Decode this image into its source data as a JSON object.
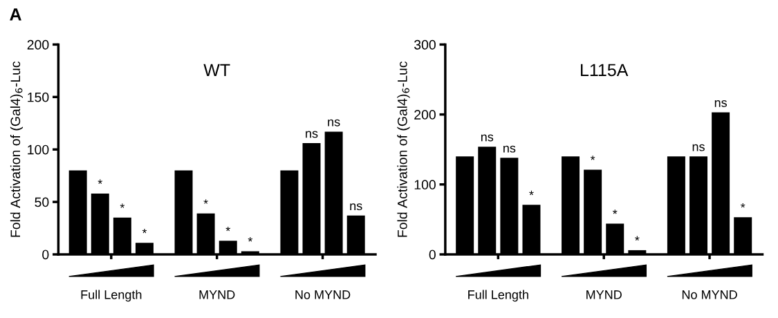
{
  "chart_data": [
    {
      "type": "bar",
      "title": "WT",
      "ylabel": "Fold Activation of (Gal4)$_{6}$-Luc",
      "annotations": [
        "A"
      ],
      "categories": [
        "Full Length",
        "MYND",
        "No MYND"
      ],
      "ylim": [
        0,
        200
      ],
      "yticks": [
        0,
        50,
        100,
        150,
        200
      ],
      "grid": false,
      "legend": false,
      "series": [
        {
          "color": "#000000",
          "values": [
            80,
            80,
            80
          ],
          "value_labels": [
            null,
            null,
            null
          ]
        },
        {
          "color": "#000000",
          "values": [
            58,
            39,
            106
          ],
          "value_labels": [
            "*",
            "*",
            "ns"
          ]
        },
        {
          "color": "#000000",
          "values": [
            35,
            13,
            117
          ],
          "value_labels": [
            "*",
            "*",
            "ns"
          ]
        },
        {
          "color": "#000000",
          "values": [
            11,
            3,
            37
          ],
          "value_labels": [
            "*",
            "*",
            "ns"
          ]
        }
      ]
    },
    {
      "type": "bar",
      "title": "L115A",
      "ylabel": "Fold Activation of (Gal4)$_{6}$-Luc",
      "categories": [
        "Full Length",
        "MYND",
        "No MYND"
      ],
      "ylim": [
        0,
        300
      ],
      "yticks": [
        0,
        100,
        200,
        300
      ],
      "grid": false,
      "legend": false,
      "series": [
        {
          "color": "#000000",
          "values": [
            140,
            140,
            140
          ],
          "value_labels": [
            null,
            null,
            null
          ]
        },
        {
          "color": "#000000",
          "values": [
            154,
            121,
            140
          ],
          "value_labels": [
            "ns",
            "*",
            "ns"
          ]
        },
        {
          "color": "#000000",
          "values": [
            138,
            44,
            203
          ],
          "value_labels": [
            "ns",
            "*",
            "ns"
          ]
        },
        {
          "color": "#000000",
          "values": [
            71,
            6,
            53
          ],
          "value_labels": [
            "*",
            "*",
            "*"
          ]
        }
      ]
    }
  ]
}
